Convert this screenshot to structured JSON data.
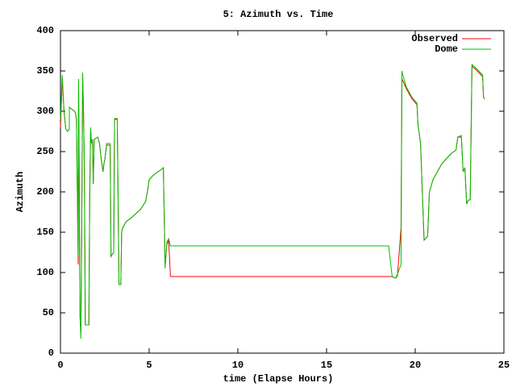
{
  "chart_data": {
    "type": "line",
    "title": "5: Azimuth vs. Time",
    "x_label": "time (Elapse Hours)",
    "y_label": "Azimuth",
    "xlim": [
      0,
      25
    ],
    "xticks": [
      0,
      5,
      10,
      15,
      20,
      25
    ],
    "ylim": [
      0,
      400
    ],
    "yticks": [
      0,
      50,
      100,
      150,
      200,
      250,
      300,
      350,
      400
    ],
    "legend": "top right",
    "series": [
      {
        "name": "Observed",
        "color": "#ff0000",
        "x": [
          0,
          0.1,
          0.2,
          0.3,
          0.4,
          0.5,
          0.5,
          0.8,
          0.85,
          0.9,
          1.0,
          1.02,
          1.05,
          1.1,
          1.15,
          1.2,
          1.25,
          1.3,
          1.35,
          1.4,
          1.6,
          1.65,
          1.7,
          1.75,
          1.8,
          1.85,
          1.9,
          2.1,
          2.2,
          2.3,
          2.4,
          2.45,
          2.5,
          2.6,
          2.8,
          2.85,
          3.0,
          3.05,
          3.2,
          3.3,
          3.4,
          3.45,
          3.5,
          3.7,
          4.0,
          4.5,
          4.8,
          4.9,
          5.0,
          5.2,
          5.5,
          5.7,
          5.8,
          5.9,
          6.0,
          6.1,
          6.2,
          18.5,
          18.7,
          18.9,
          19.0,
          19.2,
          19.25,
          19.3,
          19.5,
          19.8,
          20.1,
          20.15,
          20.3,
          20.5,
          20.7,
          20.8,
          21.0,
          21.5,
          22.0,
          22.3,
          22.4,
          22.6,
          22.7,
          22.8,
          22.9,
          23.0,
          23.1,
          23.2,
          23.5,
          23.8,
          23.85,
          23.9
        ],
        "values": [
          280,
          340,
          300,
          278,
          275,
          278,
          305,
          300,
          297,
          290,
          110,
          335,
          240,
          45,
          25,
          150,
          345,
          300,
          220,
          35,
          35,
          195,
          275,
          260,
          265,
          210,
          265,
          268,
          260,
          240,
          225,
          235,
          240,
          258,
          258,
          120,
          125,
          290,
          290,
          85,
          85,
          150,
          155,
          163,
          168,
          178,
          188,
          200,
          215,
          220,
          225,
          228,
          230,
          110,
          135,
          140,
          95,
          95,
          95,
          93,
          96,
          155,
          340,
          338,
          328,
          316,
          308,
          285,
          260,
          140,
          145,
          200,
          215,
          235,
          247,
          252,
          268,
          268,
          225,
          230,
          185,
          190,
          190,
          356,
          350,
          343,
          318,
          315
        ]
      },
      {
        "name": "Dome",
        "color": "#00c000",
        "x": [
          0,
          0.1,
          0.2,
          0.3,
          0.4,
          0.5,
          0.5,
          0.8,
          0.85,
          0.9,
          1.0,
          1.02,
          1.05,
          1.1,
          1.15,
          1.2,
          1.25,
          1.3,
          1.35,
          1.4,
          1.6,
          1.65,
          1.7,
          1.75,
          1.8,
          1.85,
          1.9,
          2.1,
          2.2,
          2.3,
          2.4,
          2.45,
          2.5,
          2.6,
          2.8,
          2.85,
          3.0,
          3.05,
          3.2,
          3.3,
          3.4,
          3.45,
          3.5,
          3.7,
          4.0,
          4.5,
          4.8,
          4.9,
          5.0,
          5.2,
          5.5,
          5.7,
          5.8,
          5.9,
          6.0,
          6.1,
          6.2,
          18.5,
          18.7,
          18.9,
          19.0,
          19.2,
          19.25,
          19.3,
          19.5,
          19.8,
          20.1,
          20.15,
          20.3,
          20.5,
          20.7,
          20.8,
          21.0,
          21.5,
          22.0,
          22.3,
          22.4,
          22.6,
          22.7,
          22.8,
          22.9,
          23.0,
          23.1,
          23.2,
          23.5,
          23.8,
          23.85,
          23.9
        ],
        "values": [
          290,
          345,
          300,
          278,
          275,
          278,
          305,
          300,
          297,
          290,
          120,
          340,
          250,
          50,
          18,
          160,
          348,
          300,
          230,
          35,
          35,
          200,
          280,
          260,
          265,
          210,
          265,
          268,
          260,
          240,
          225,
          235,
          240,
          260,
          260,
          120,
          125,
          291,
          291,
          85,
          85,
          150,
          155,
          163,
          168,
          178,
          188,
          200,
          215,
          220,
          225,
          228,
          230,
          105,
          138,
          142,
          133,
          133,
          95,
          93,
          98,
          110,
          350,
          345,
          330,
          318,
          310,
          285,
          260,
          140,
          145,
          200,
          215,
          235,
          247,
          252,
          268,
          270,
          225,
          230,
          185,
          190,
          190,
          358,
          352,
          345,
          318,
          315
        ]
      }
    ]
  }
}
